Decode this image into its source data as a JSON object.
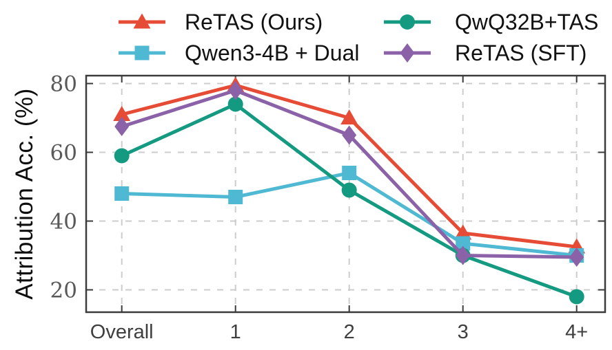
{
  "chart_data": {
    "type": "line",
    "title": "",
    "xlabel": "",
    "ylabel": "Attribution Acc. (%)",
    "categories": [
      "Overall",
      "1",
      "2",
      "3",
      "4+"
    ],
    "yticks": [
      20,
      40,
      60,
      80
    ],
    "ylim": [
      13.5,
      82.3
    ],
    "grid": "both, dashed gray",
    "legend_position": "top outside plot, 2 columns, column-major, no frame",
    "series": [
      {
        "name": "ReTAS (Ours)",
        "color": "#e64c35",
        "marker": "triangle-up",
        "values": [
          71,
          79.5,
          70,
          36.5,
          32.5
        ]
      },
      {
        "name": "Qwen3-4B + Dual",
        "color": "#4fb8d2",
        "marker": "square",
        "values": [
          48,
          47,
          54,
          33.5,
          30
        ]
      },
      {
        "name": "QwQ32B+TAS",
        "color": "#149a81",
        "marker": "circle",
        "values": [
          59,
          74,
          49,
          30,
          18
        ]
      },
      {
        "name": "ReTAS (SFT)",
        "color": "#8b62a7",
        "marker": "diamond",
        "values": [
          67.5,
          78,
          65,
          30,
          29.5
        ]
      }
    ]
  },
  "colors": {
    "grid": "#cccccc",
    "spine": "#3b3b3b",
    "ytick_label": "#595959",
    "xtick_label": "#3f3f3f",
    "legend_text": "#111111"
  }
}
